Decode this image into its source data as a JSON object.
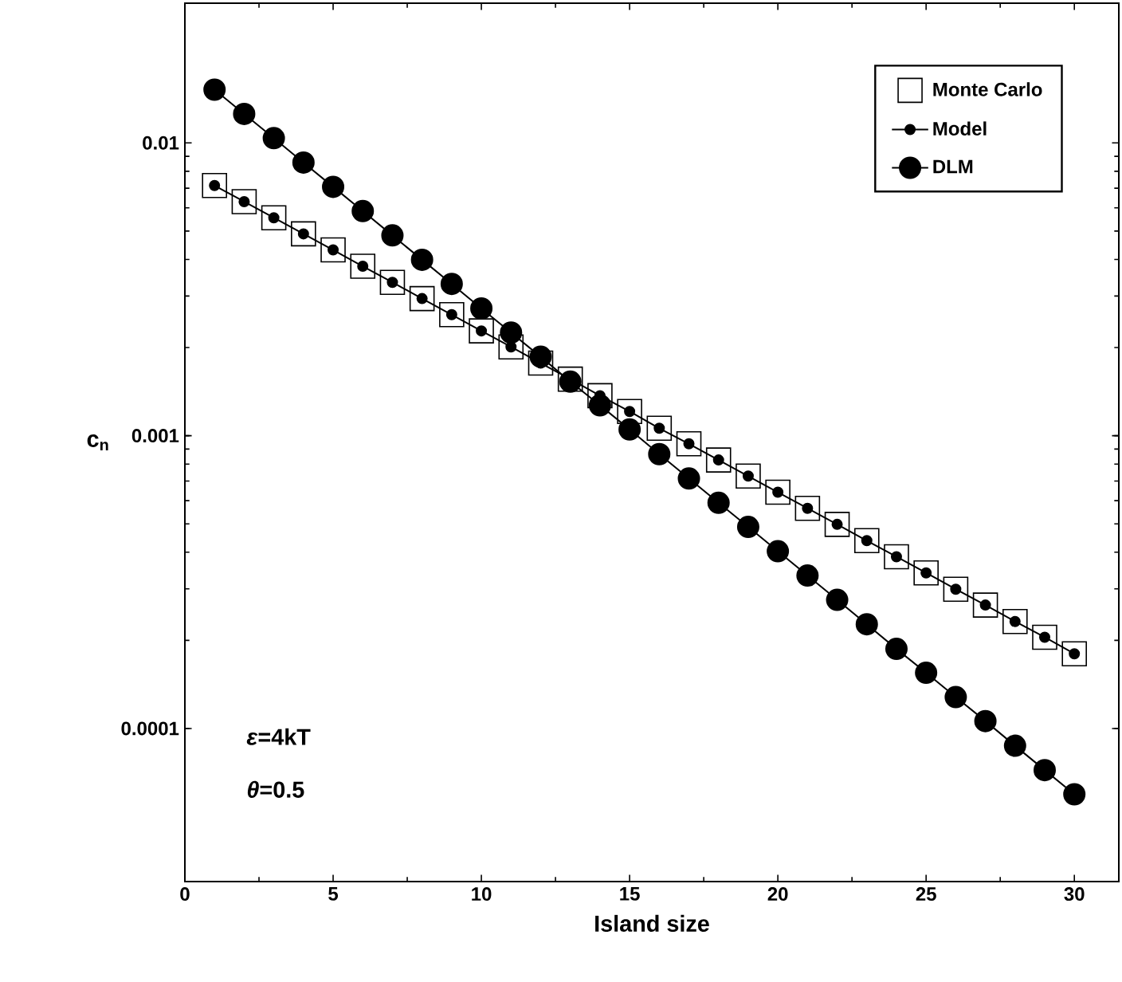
{
  "chart_data": {
    "type": "line",
    "xlabel": "Island size",
    "ylabel": "c$_{n}$",
    "log": "y",
    "x": [
      1,
      2,
      3,
      4,
      5,
      6,
      7,
      8,
      9,
      10,
      11,
      12,
      13,
      14,
      15,
      16,
      17,
      18,
      19,
      20,
      21,
      22,
      23,
      24,
      25,
      26,
      27,
      28,
      29,
      30
    ],
    "xlim": [
      0,
      31.5
    ],
    "xticks": [
      0,
      5,
      10,
      15,
      20,
      25,
      30
    ],
    "ylim": [
      3e-05,
      0.03
    ],
    "yticks": [
      0.0001,
      0.001,
      0.01
    ],
    "legend": "top right",
    "series": [
      {
        "name": "Monte Carlo",
        "type": "scatter",
        "marker": "square",
        "color": "#000000",
        "values": [
          0.00715,
          0.0063,
          0.00555,
          0.00489,
          0.00431,
          0.00379,
          0.00334,
          0.00294,
          0.00259,
          0.00228,
          0.00201,
          0.00177,
          0.00156,
          0.00137,
          0.00121,
          0.00106,
          0.000938,
          0.000826,
          0.000728,
          0.000641,
          0.000565,
          0.000498,
          0.000438,
          0.000386,
          0.00034,
          0.000299,
          0.000264,
          0.000232,
          0.000205,
          0.00018
        ]
      },
      {
        "name": "Model",
        "marker": "circle",
        "color": "#000000",
        "values": [
          0.00715,
          0.0063,
          0.00555,
          0.00489,
          0.00431,
          0.00379,
          0.00334,
          0.00294,
          0.00259,
          0.00228,
          0.00201,
          0.00177,
          0.00156,
          0.00137,
          0.00121,
          0.00106,
          0.000938,
          0.000826,
          0.000728,
          0.000641,
          0.000565,
          0.000498,
          0.000438,
          0.000386,
          0.00034,
          0.000299,
          0.000264,
          0.000232,
          0.000205,
          0.00018
        ]
      },
      {
        "name": "DLM",
        "marker": "circle",
        "color": "#000000",
        "values": [
          0.0152,
          0.01256,
          0.01038,
          0.00857,
          0.00708,
          0.00585,
          0.00483,
          0.00399,
          0.0033,
          0.00272,
          0.00225,
          0.00186,
          0.00153,
          0.00127,
          0.00105,
          0.000865,
          0.000714,
          0.00059,
          0.000488,
          0.000403,
          0.000333,
          0.000275,
          0.000227,
          0.000187,
          0.000155,
          0.000128,
          0.000106,
          8.73e-05,
          7.21e-05,
          5.96e-05
        ]
      }
    ],
    "annotations": [
      "*ε*=4kT",
      "*θ*=0.5"
    ]
  }
}
